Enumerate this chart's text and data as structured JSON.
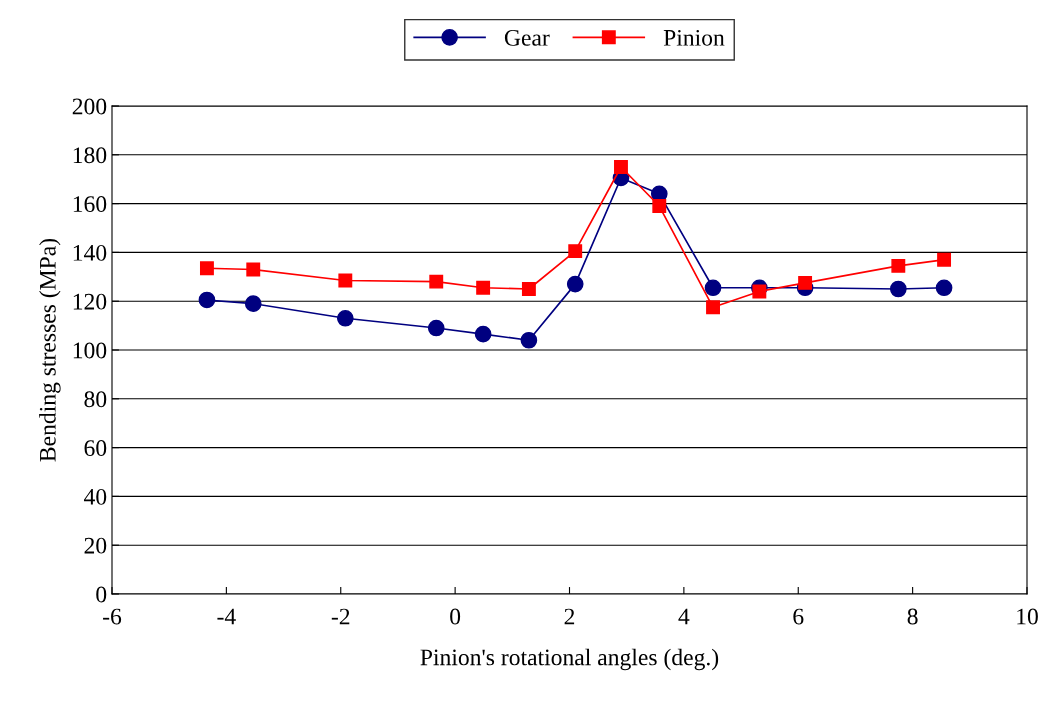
{
  "chart_data": {
    "type": "line",
    "xlabel": "Pinion's rotational angles (deg.)",
    "ylabel": "Bending stresses (MPa)",
    "x": [
      -4.34,
      -3.53,
      -1.92,
      -0.33,
      0.49,
      1.29,
      2.1,
      2.9,
      3.57,
      4.51,
      5.32,
      6.12,
      7.75,
      8.55
    ],
    "series": [
      {
        "name": "Gear",
        "color": "#000080",
        "marker": "circle",
        "values": [
          120.5,
          119,
          113,
          109,
          106.5,
          104,
          127,
          170.5,
          164,
          125.5,
          125.5,
          125.5,
          125,
          125.5
        ]
      },
      {
        "name": "Pinion",
        "color": "#ff0000",
        "marker": "square",
        "values": [
          133.5,
          133,
          128.5,
          128,
          125.5,
          125,
          140.5,
          175,
          159,
          117.5,
          124,
          127.5,
          134.5,
          137
        ]
      }
    ],
    "xlim": [
      -6,
      10
    ],
    "xticks": [
      -6,
      -4,
      -2,
      0,
      2,
      4,
      6,
      8,
      10
    ],
    "ylim": [
      0,
      200
    ],
    "yticks": [
      0,
      20,
      40,
      60,
      80,
      100,
      120,
      140,
      160,
      180,
      200
    ],
    "grid": "y",
    "legend": "top",
    "line_style": "solid"
  }
}
